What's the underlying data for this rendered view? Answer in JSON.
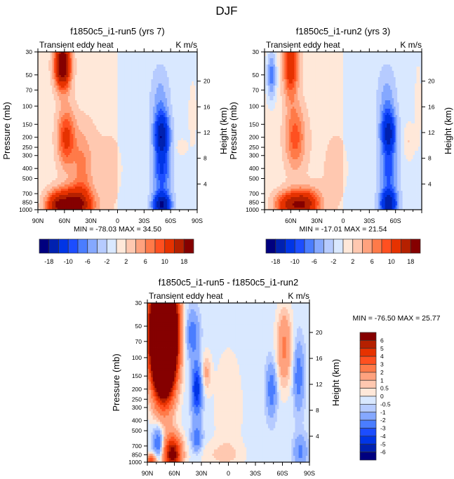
{
  "figure": {
    "title": "DJF"
  },
  "palette": {
    "colors16": [
      "#00007f",
      "#0021b0",
      "#0035e6",
      "#1c4dff",
      "#4a7dff",
      "#85a8ff",
      "#b6cbff",
      "#d9e8ff",
      "#ffe8d9",
      "#ffc8b0",
      "#ffa27e",
      "#ff7a49",
      "#ff5020",
      "#e63200",
      "#b52000",
      "#850000"
    ],
    "colors14": [
      "#00007f",
      "#0021b0",
      "#0035e6",
      "#1c4dff",
      "#4a7dff",
      "#85a8ff",
      "#b6cbff",
      "#d9e8ff",
      "#ffe8d9",
      "#ffc8b0",
      "#ffa27e",
      "#ff7a49",
      "#ff5020",
      "#e63200",
      "#b52000",
      "#850000"
    ]
  },
  "chart_data": [
    {
      "type": "heatmap",
      "id": "run5",
      "title": "f1850c5_i1-run5 (yrs 7)",
      "left_string": "Transient eddy heat",
      "right_string": "K m/s",
      "ylabel": "Pressure (mb)",
      "ylabel_right": "Height (km)",
      "x_ticks": [
        "90N",
        "60N",
        "30N",
        "0",
        "30S",
        "60S",
        "90S"
      ],
      "x_range": [
        90,
        -90
      ],
      "y_ticks": [
        30,
        50,
        70,
        100,
        150,
        200,
        250,
        300,
        400,
        500,
        700,
        850,
        1000
      ],
      "y_range": [
        30,
        1000
      ],
      "y_scale": "log",
      "height_ticks": [
        20,
        16,
        12,
        8,
        4
      ],
      "min_max_text": "MIN = -78.03  MAX =  34.50",
      "min": -78.03,
      "max": 34.5,
      "levels": [
        -20,
        -18,
        -14,
        -10,
        -8,
        -6,
        -4,
        -2,
        0,
        2,
        4,
        6,
        8,
        10,
        14,
        18
      ],
      "colorbar_labels": [
        "-18",
        "-10",
        "-6",
        "-2",
        "2",
        "6",
        "10",
        "18"
      ],
      "colorbar_orientation": "horizontal",
      "features": [
        {
          "lat": 62,
          "p": 40,
          "sig_lat": 6,
          "sig_logp": 0.35,
          "amp": 24
        },
        {
          "lat": 58,
          "p": 200,
          "sig_lat": 7,
          "sig_logp": 0.45,
          "amp": 10
        },
        {
          "lat": 50,
          "p": 900,
          "sig_lat": 14,
          "sig_logp": 0.25,
          "amp": 20
        },
        {
          "lat": 70,
          "p": 900,
          "sig_lat": 8,
          "sig_logp": 0.2,
          "amp": 10
        },
        {
          "lat": 40,
          "p": 400,
          "sig_lat": 8,
          "sig_logp": 0.6,
          "amp": 5
        },
        {
          "lat": -50,
          "p": 200,
          "sig_lat": 6,
          "sig_logp": 0.35,
          "amp": -16
        },
        {
          "lat": -50,
          "p": 900,
          "sig_lat": 7,
          "sig_logp": 0.2,
          "amp": -18
        },
        {
          "lat": -50,
          "p": 450,
          "sig_lat": 7,
          "sig_logp": 0.3,
          "amp": -8
        },
        {
          "lat": -48,
          "p": 90,
          "sig_lat": 7,
          "sig_logp": 0.5,
          "amp": -4
        },
        {
          "lat": 10,
          "p": 400,
          "sig_lat": 25,
          "sig_logp": 1.2,
          "amp": 1.2
        },
        {
          "lat": -72,
          "p": 250,
          "sig_lat": 4,
          "sig_logp": 0.12,
          "amp": 3
        },
        {
          "lat": -85,
          "p": 120,
          "sig_lat": 5,
          "sig_logp": 0.8,
          "amp": 1.5
        }
      ],
      "background": {
        "north": 1.0,
        "south": -1.0,
        "edge_lat": 0
      }
    },
    {
      "type": "heatmap",
      "id": "run2",
      "title": "f1850c5_i1-run2 (yrs 3)",
      "left_string": "Transient eddy heat",
      "right_string": "K m/s",
      "ylabel": "Pressure (mb)",
      "ylabel_right": "Height (km)",
      "x_ticks": [
        "",
        "60N",
        "30N",
        "0",
        "30S",
        "60S",
        ""
      ],
      "x_range": [
        90,
        -90
      ],
      "y_ticks": [
        30,
        50,
        70,
        100,
        150,
        200,
        250,
        300,
        400,
        500,
        700,
        850,
        1000
      ],
      "y_range": [
        30,
        1000
      ],
      "y_scale": "log",
      "height_ticks": [
        20,
        16,
        12,
        8,
        4
      ],
      "min_max_text": "MIN = -17.01  MAX =  21.54",
      "min": -17.01,
      "max": 21.54,
      "levels": [
        -20,
        -18,
        -14,
        -10,
        -8,
        -6,
        -4,
        -2,
        0,
        2,
        4,
        6,
        8,
        10,
        14,
        18
      ],
      "colorbar_labels": [
        "-18",
        "-10",
        "-6",
        "-2",
        "2",
        "6",
        "10",
        "18"
      ],
      "colorbar_orientation": "horizontal",
      "features": [
        {
          "lat": 60,
          "p": 40,
          "sig_lat": 6,
          "sig_logp": 0.5,
          "amp": 12
        },
        {
          "lat": 55,
          "p": 200,
          "sig_lat": 8,
          "sig_logp": 0.5,
          "amp": 8
        },
        {
          "lat": 45,
          "p": 880,
          "sig_lat": 12,
          "sig_logp": 0.22,
          "amp": 16
        },
        {
          "lat": 65,
          "p": 900,
          "sig_lat": 10,
          "sig_logp": 0.2,
          "amp": 10
        },
        {
          "lat": 82,
          "p": 50,
          "sig_lat": 4,
          "sig_logp": 0.4,
          "amp": -8
        },
        {
          "lat": -52,
          "p": 190,
          "sig_lat": 6,
          "sig_logp": 0.35,
          "amp": -14
        },
        {
          "lat": -52,
          "p": 880,
          "sig_lat": 7,
          "sig_logp": 0.22,
          "amp": -16
        },
        {
          "lat": -52,
          "p": 450,
          "sig_lat": 7,
          "sig_logp": 0.3,
          "amp": -7
        },
        {
          "lat": -50,
          "p": 90,
          "sig_lat": 7,
          "sig_logp": 0.5,
          "amp": -4
        },
        {
          "lat": 8,
          "p": 400,
          "sig_lat": 22,
          "sig_logp": 1.2,
          "amp": 1.2
        },
        {
          "lat": -75,
          "p": 220,
          "sig_lat": 4,
          "sig_logp": 0.3,
          "amp": 3
        },
        {
          "lat": -86,
          "p": 100,
          "sig_lat": 4,
          "sig_logp": 1.0,
          "amp": 1.5
        }
      ],
      "background": {
        "north": 1.0,
        "south": -1.0,
        "edge_lat": 0
      }
    },
    {
      "type": "heatmap",
      "id": "diff",
      "title": "f1850c5_i1-run5 - f1850c5_i1-run2",
      "left_string": "Transient eddy heat",
      "right_string": "K m/s",
      "ylabel": "Pressure (mb)",
      "ylabel_right": "Height (km)",
      "x_ticks": [
        "90N",
        "60N",
        "30N",
        "0",
        "30S",
        "60S",
        "90S"
      ],
      "x_range": [
        90,
        -90
      ],
      "y_ticks": [
        30,
        50,
        70,
        100,
        150,
        200,
        250,
        300,
        400,
        500,
        700,
        850,
        1000
      ],
      "y_range": [
        30,
        1000
      ],
      "y_scale": "log",
      "height_ticks": [
        20,
        16,
        12,
        8,
        4
      ],
      "min_max_text": "MIN = -76.50  MAX =  25.77",
      "min": -76.5,
      "max": 25.77,
      "levels": [
        -7,
        -6,
        -5,
        -4,
        -3,
        -2,
        -1,
        -0.5,
        0,
        0.5,
        1,
        2,
        3,
        4,
        5,
        6
      ],
      "colorbar_labels": [
        "6",
        "5",
        "4",
        "3",
        "2",
        "1",
        "0.5",
        "0",
        "-0.5",
        "-1",
        "-2",
        "-3",
        "-4",
        "-5",
        "-6"
      ],
      "colorbar_orientation": "vertical",
      "features": [
        {
          "lat": 72,
          "p": 60,
          "sig_lat": 9,
          "sig_logp": 0.8,
          "amp": 30
        },
        {
          "lat": 62,
          "p": 850,
          "sig_lat": 7,
          "sig_logp": 0.3,
          "amp": 7
        },
        {
          "lat": 85,
          "p": 960,
          "sig_lat": 4,
          "sig_logp": 0.1,
          "amp": 4
        },
        {
          "lat": 35,
          "p": 200,
          "sig_lat": 4,
          "sig_logp": 0.4,
          "amp": -4.5
        },
        {
          "lat": 40,
          "p": 60,
          "sig_lat": 5,
          "sig_logp": 0.35,
          "amp": -2.5
        },
        {
          "lat": 35,
          "p": 600,
          "sig_lat": 4,
          "sig_logp": 0.2,
          "amp": -2.5
        },
        {
          "lat": 78,
          "p": 650,
          "sig_lat": 4,
          "sig_logp": 0.25,
          "amp": -3
        },
        {
          "lat": 25,
          "p": 140,
          "sig_lat": 4,
          "sig_logp": 0.3,
          "amp": 1.5
        },
        {
          "lat": -62,
          "p": 80,
          "sig_lat": 6,
          "sig_logp": 0.6,
          "amp": 2.5
        },
        {
          "lat": -48,
          "p": 200,
          "sig_lat": 4,
          "sig_logp": 0.4,
          "amp": -2.5
        },
        {
          "lat": -78,
          "p": 150,
          "sig_lat": 4,
          "sig_logp": 0.5,
          "amp": -2.5
        },
        {
          "lat": -80,
          "p": 800,
          "sig_lat": 5,
          "sig_logp": 0.25,
          "amp": -2
        },
        {
          "lat": 0,
          "p": 300,
          "sig_lat": 12,
          "sig_logp": 1.0,
          "amp": 0.7
        },
        {
          "lat": 10,
          "p": 850,
          "sig_lat": 20,
          "sig_logp": 0.2,
          "amp": 0.7
        }
      ],
      "background": {
        "north": -0.3,
        "south": -0.3,
        "edge_lat": 0
      }
    }
  ]
}
